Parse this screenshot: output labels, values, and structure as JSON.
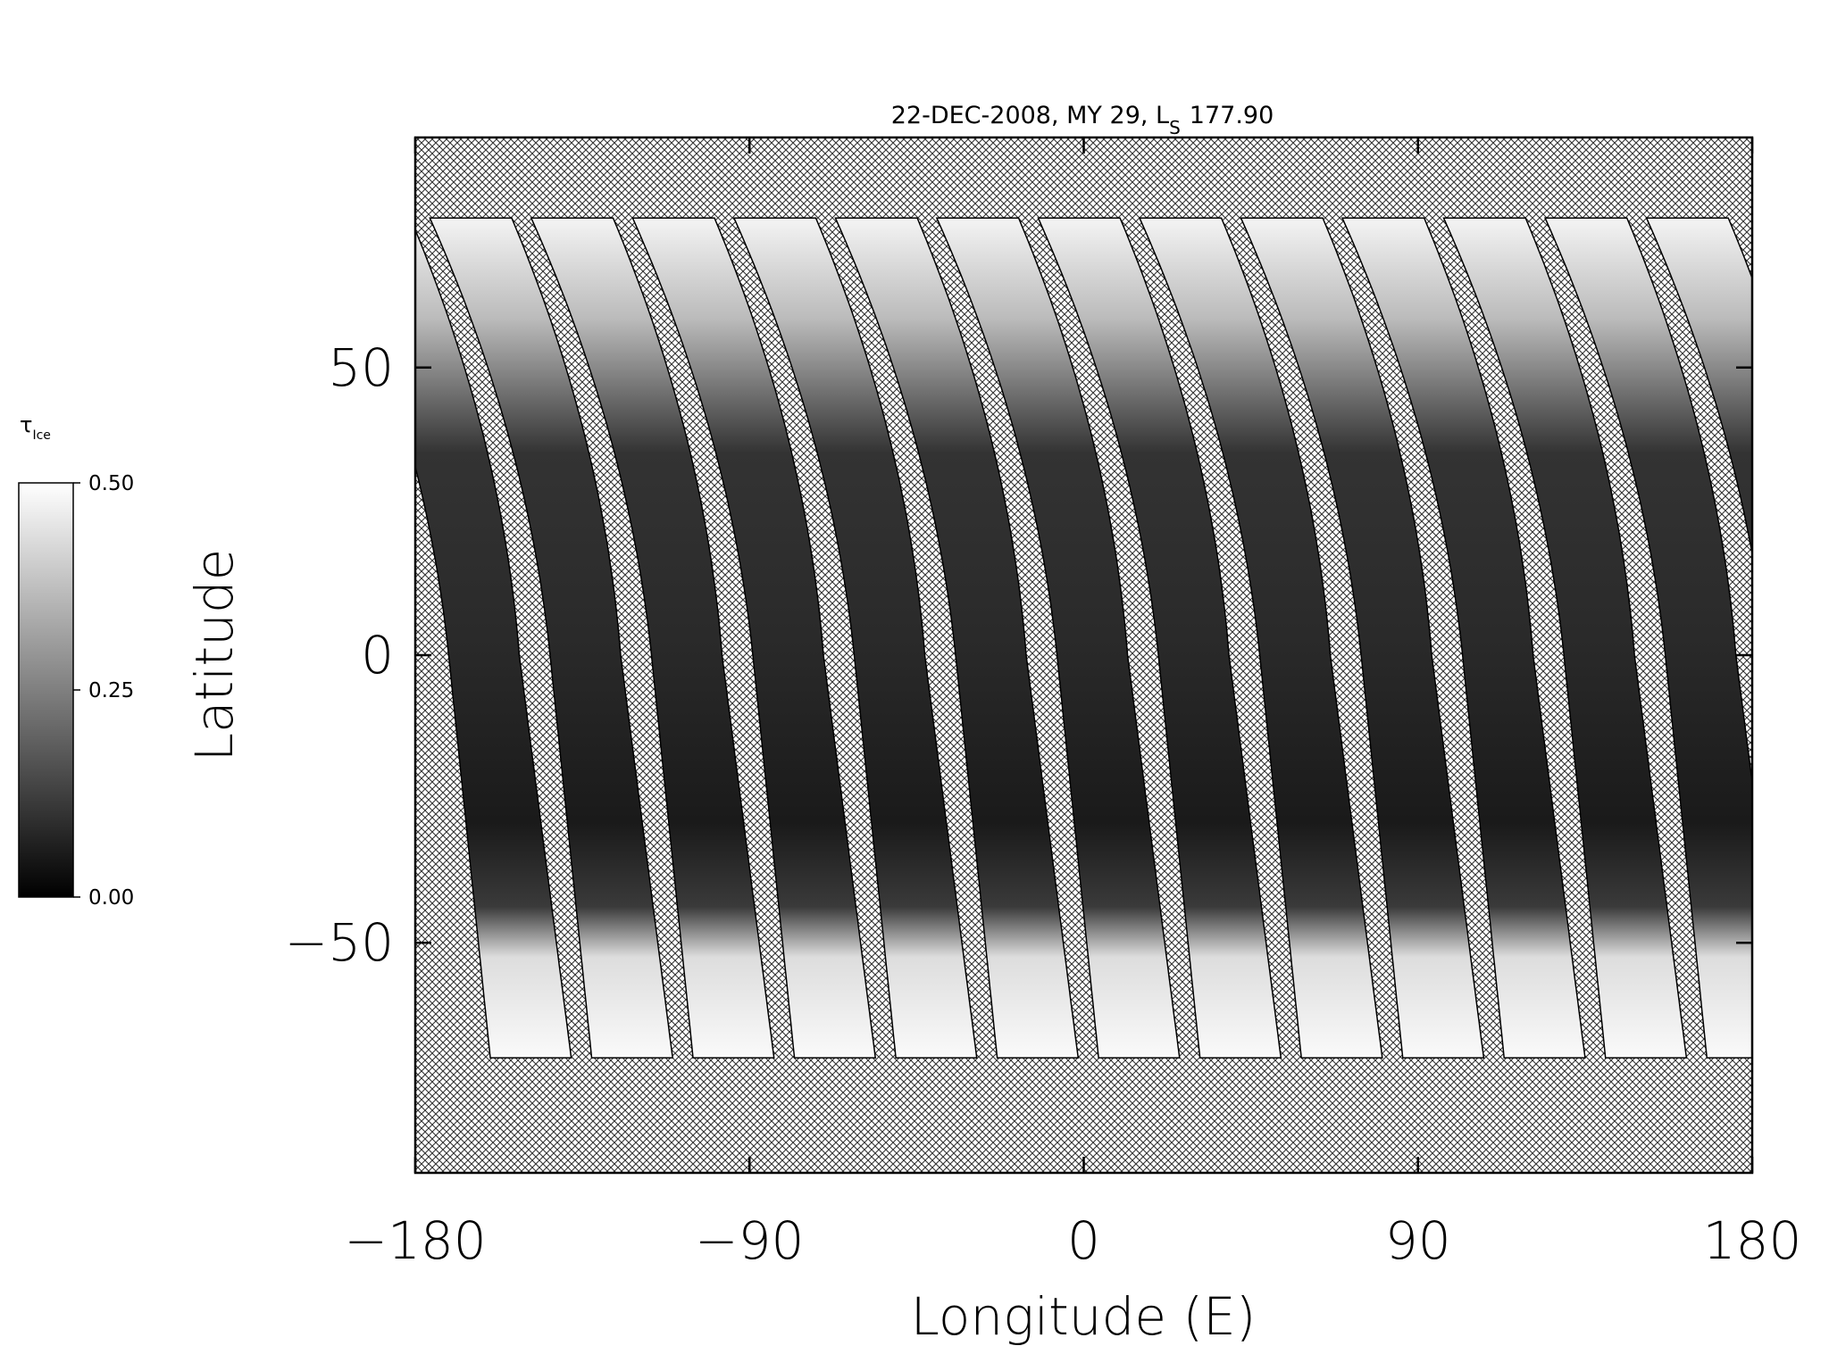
{
  "chart_data": {
    "type": "map",
    "title": "22-DEC-2008, MY 29,  L",
    "title_subscript": "S",
    "title_suffix": "177.90",
    "x_label": "Longitude (E)",
    "y_label": "Latitude",
    "xlim": [
      -180,
      180
    ],
    "xticks": [
      {
        "value": -180,
        "label": "−180"
      },
      {
        "value": -90,
        "label": "−90"
      },
      0,
      90,
      180
    ],
    "ylim": [
      -90,
      90
    ],
    "yticks": [
      {
        "value": -50,
        "label": "−50"
      },
      0,
      50
    ],
    "colorbar": {
      "label": "τ",
      "label_subscript": "Ice",
      "lim": [
        0,
        0.5
      ],
      "ticks": [
        {
          "value": 0,
          "label": "0.00"
        },
        {
          "value": 0.25,
          "label": "0.25"
        },
        {
          "value": 0.5,
          "label": "0.50"
        }
      ]
    }
  }
}
